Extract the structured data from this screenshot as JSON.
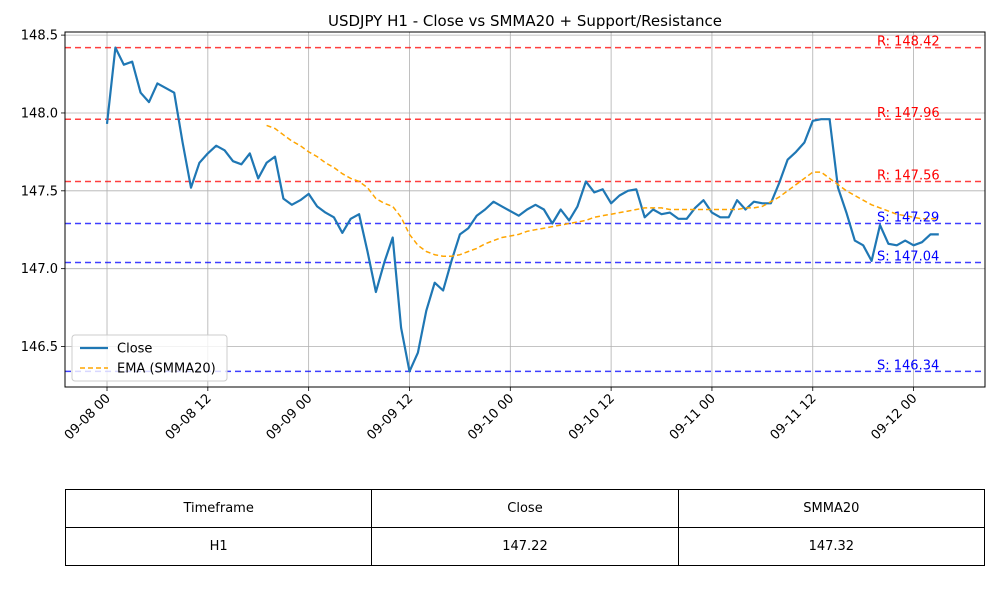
{
  "chart_data": {
    "type": "line",
    "title": "USDJPY H1 - Close vs SMMA20 + Support/Resistance",
    "xlabel": "",
    "ylabel": "",
    "x_ticks": [
      "09-08 00",
      "09-08 12",
      "09-09 00",
      "09-09 12",
      "09-10 00",
      "09-10 12",
      "09-11 00",
      "09-11 12",
      "09-12 00"
    ],
    "y_ticks": [
      "146.5",
      "147.0",
      "147.5",
      "148.0",
      "148.5"
    ],
    "ylim": [
      146.24,
      148.52
    ],
    "xlim_hours": [
      -5,
      104.5
    ],
    "grid": true,
    "legend_position": "lower-left",
    "series": [
      {
        "name": "Close",
        "color": "#1f77b4",
        "style": "solid",
        "x_hours": [
          0,
          1,
          2,
          3,
          4,
          5,
          6,
          7,
          8,
          9,
          10,
          11,
          12,
          13,
          14,
          15,
          16,
          17,
          18,
          19,
          20,
          21,
          22,
          23,
          24,
          25,
          26,
          27,
          28,
          29,
          30,
          31,
          32,
          33,
          34,
          35,
          36,
          37,
          38,
          39,
          40,
          41,
          42,
          43,
          44,
          45,
          46,
          47,
          48,
          49,
          50,
          51,
          52,
          53,
          54,
          55,
          56,
          57,
          58,
          59,
          60,
          61,
          62,
          63,
          64,
          65,
          66,
          67,
          68,
          69,
          70,
          71,
          72,
          73,
          74,
          75,
          76,
          77,
          78,
          79,
          80,
          81,
          82,
          83,
          84,
          85,
          86,
          87,
          88,
          89,
          90,
          91,
          92,
          93,
          94,
          95,
          96,
          97,
          98,
          99
        ],
        "values": [
          147.93,
          148.42,
          148.31,
          148.33,
          148.13,
          148.07,
          148.19,
          148.16,
          148.13,
          147.81,
          147.52,
          147.68,
          147.74,
          147.79,
          147.76,
          147.69,
          147.67,
          147.74,
          147.58,
          147.68,
          147.72,
          147.45,
          147.41,
          147.44,
          147.48,
          147.4,
          147.36,
          147.33,
          147.23,
          147.32,
          147.35,
          147.11,
          146.85,
          147.04,
          147.2,
          146.62,
          146.34,
          146.46,
          146.73,
          146.91,
          146.86,
          147.05,
          147.22,
          147.26,
          147.34,
          147.38,
          147.43,
          147.4,
          147.37,
          147.34,
          147.38,
          147.41,
          147.38,
          147.29,
          147.38,
          147.31,
          147.4,
          147.56,
          147.49,
          147.51,
          147.42,
          147.47,
          147.5,
          147.51,
          147.33,
          147.38,
          147.35,
          147.36,
          147.32,
          147.32,
          147.39,
          147.44,
          147.36,
          147.33,
          147.33,
          147.44,
          147.38,
          147.43,
          147.42,
          147.42,
          147.55,
          147.7,
          147.75,
          147.81,
          147.95,
          147.96,
          147.96,
          147.52,
          147.36,
          147.18,
          147.15,
          147.05,
          147.28,
          147.16,
          147.15,
          147.18,
          147.15,
          147.17,
          147.22,
          147.22
        ]
      },
      {
        "name": "EMA (SMMA20)",
        "color": "#ffa500",
        "style": "dashed",
        "x_hours": [
          19,
          20,
          21,
          22,
          23,
          24,
          25,
          26,
          27,
          28,
          29,
          30,
          31,
          32,
          33,
          34,
          35,
          36,
          37,
          38,
          39,
          40,
          41,
          42,
          43,
          44,
          45,
          46,
          47,
          48,
          49,
          50,
          51,
          52,
          53,
          54,
          55,
          56,
          57,
          58,
          59,
          60,
          61,
          62,
          63,
          64,
          65,
          66,
          67,
          68,
          69,
          70,
          71,
          72,
          73,
          74,
          75,
          76,
          77,
          78,
          79,
          80,
          81,
          82,
          83,
          84,
          85,
          86,
          87,
          88,
          89,
          90,
          91,
          92,
          93,
          94,
          95,
          96,
          97,
          98,
          99
        ],
        "values": [
          147.92,
          147.9,
          147.86,
          147.82,
          147.79,
          147.75,
          147.72,
          147.68,
          147.65,
          147.61,
          147.58,
          147.56,
          147.52,
          147.45,
          147.42,
          147.4,
          147.33,
          147.22,
          147.15,
          147.11,
          147.09,
          147.08,
          147.08,
          147.09,
          147.11,
          147.13,
          147.16,
          147.18,
          147.2,
          147.21,
          147.22,
          147.24,
          147.25,
          147.26,
          147.27,
          147.28,
          147.29,
          147.3,
          147.31,
          147.33,
          147.34,
          147.35,
          147.36,
          147.37,
          147.38,
          147.39,
          147.39,
          147.39,
          147.38,
          147.38,
          147.38,
          147.38,
          147.38,
          147.38,
          147.38,
          147.38,
          147.38,
          147.39,
          147.39,
          147.4,
          147.43,
          147.46,
          147.5,
          147.54,
          147.58,
          147.62,
          147.62,
          147.58,
          147.54,
          147.5,
          147.47,
          147.44,
          147.41,
          147.39,
          147.37,
          147.35,
          147.34,
          147.33,
          147.32,
          147.32,
          147.32
        ]
      }
    ],
    "levels": [
      {
        "kind": "resistance",
        "value": 148.42,
        "label": "R: 148.42",
        "color": "#ff0000"
      },
      {
        "kind": "resistance",
        "value": 147.96,
        "label": "R: 147.96",
        "color": "#ff0000"
      },
      {
        "kind": "resistance",
        "value": 147.56,
        "label": "R: 147.56",
        "color": "#ff0000"
      },
      {
        "kind": "support",
        "value": 147.29,
        "label": "S: 147.29",
        "color": "#0000ff"
      },
      {
        "kind": "support",
        "value": 147.04,
        "label": "S: 147.04",
        "color": "#0000ff"
      },
      {
        "kind": "support",
        "value": 146.34,
        "label": "S: 146.34",
        "color": "#0000ff"
      }
    ]
  },
  "table": {
    "headers": [
      "Timeframe",
      "Close",
      "SMMA20"
    ],
    "row": [
      "H1",
      "147.22",
      "147.32"
    ]
  }
}
